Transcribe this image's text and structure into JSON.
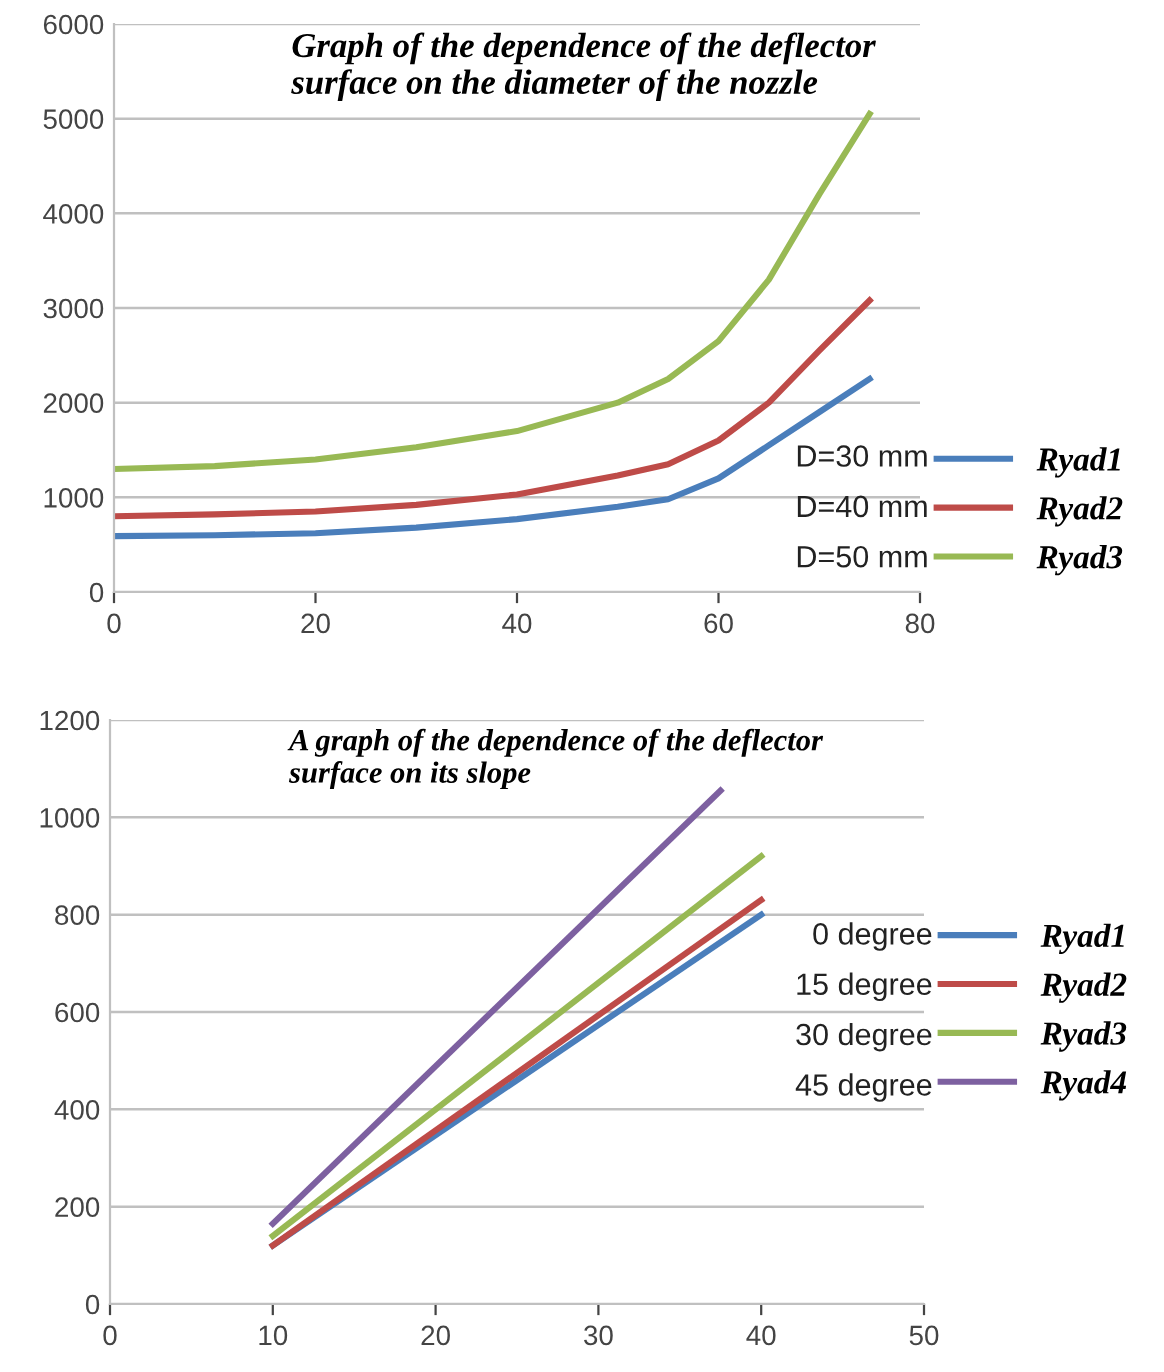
{
  "chart_data": [
    {
      "type": "line",
      "title": "Graph of the dependence of the deflector surface on the diameter of the nozzle",
      "xlim": [
        0,
        80
      ],
      "ylim": [
        0,
        6000
      ],
      "xticks": [
        0,
        20,
        40,
        60,
        80
      ],
      "yticks": [
        0,
        1000,
        2000,
        3000,
        4000,
        5000,
        6000
      ],
      "grid": "y",
      "legend": "bottom right",
      "annotations": [
        "D=30 mm",
        "D=40 mm",
        "D=50 mm"
      ],
      "series": [
        {
          "name": "Ryad1",
          "color": "#4a7ebb",
          "x": [
            0,
            10,
            20,
            30,
            40,
            50,
            55,
            60,
            65,
            70,
            75
          ],
          "values": [
            590,
            600,
            620,
            680,
            770,
            900,
            980,
            1200,
            1550,
            1900,
            2250
          ]
        },
        {
          "name": "Ryad2",
          "color": "#be4b48",
          "x": [
            0,
            10,
            20,
            30,
            40,
            50,
            55,
            60,
            65,
            70,
            75
          ],
          "values": [
            800,
            820,
            850,
            920,
            1030,
            1230,
            1350,
            1600,
            2000,
            2550,
            3080
          ]
        },
        {
          "name": "Ryad3",
          "color": "#98b954",
          "x": [
            0,
            10,
            20,
            30,
            40,
            50,
            55,
            60,
            65,
            70,
            75
          ],
          "values": [
            1300,
            1330,
            1400,
            1530,
            1700,
            2000,
            2250,
            2650,
            3300,
            4200,
            5050
          ]
        }
      ]
    },
    {
      "type": "line",
      "title": "A graph of the dependence of the deflector surface on its slope",
      "xlim": [
        0,
        50
      ],
      "ylim": [
        0,
        1200
      ],
      "xticks": [
        0,
        10,
        20,
        30,
        40,
        50
      ],
      "yticks": [
        0,
        200,
        400,
        600,
        800,
        1000,
        1200
      ],
      "grid": "y",
      "legend": "right",
      "annotations": [
        "0 degree",
        "15 degree",
        "30 degree",
        "45 degree"
      ],
      "series": [
        {
          "name": "Ryad1",
          "color": "#4a7ebb",
          "x": [
            10,
            40
          ],
          "values": [
            120,
            800
          ]
        },
        {
          "name": "Ryad2",
          "color": "#be4b48",
          "x": [
            10,
            40
          ],
          "values": [
            120,
            830
          ]
        },
        {
          "name": "Ryad3",
          "color": "#98b954",
          "x": [
            10,
            40
          ],
          "values": [
            140,
            920
          ]
        },
        {
          "name": "Ryad4",
          "color": "#7d60a0",
          "x": [
            10,
            37.5
          ],
          "values": [
            165,
            1055
          ]
        }
      ]
    }
  ]
}
